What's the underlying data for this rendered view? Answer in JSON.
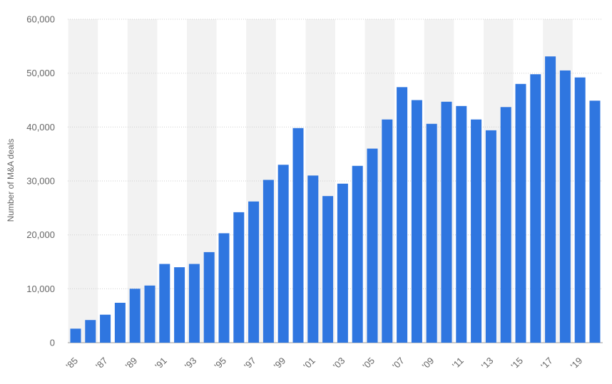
{
  "chart_data": {
    "type": "bar",
    "ylabel": "Number of M&A deals",
    "ylim": [
      0,
      60000
    ],
    "yticks": [
      0,
      10000,
      20000,
      30000,
      40000,
      50000,
      60000
    ],
    "ytick_labels": [
      "0",
      "10,000",
      "20,000",
      "30,000",
      "40,000",
      "50,000",
      "60,000"
    ],
    "grid": true,
    "colors": {
      "bar": "#2f76e0",
      "band": "#f2f2f2",
      "grid": "#cfcfcf"
    },
    "categories": [
      "'85",
      "'86",
      "'87",
      "'88",
      "'89",
      "'90",
      "'91",
      "'92",
      "'93",
      "'94",
      "'95",
      "'96",
      "'97",
      "'98",
      "'99",
      "'00",
      "'01",
      "'02",
      "'03",
      "'04",
      "'05",
      "'06",
      "'07",
      "'08",
      "'09",
      "'10",
      "'11",
      "'12",
      "'13",
      "'14",
      "'15",
      "'16",
      "'17",
      "'18",
      "'19",
      "'20"
    ],
    "values": [
      2600,
      4200,
      5200,
      7400,
      10000,
      10600,
      14600,
      14000,
      14600,
      16800,
      20300,
      24200,
      26200,
      30200,
      33000,
      39800,
      31000,
      27200,
      29500,
      32800,
      36000,
      41400,
      47400,
      45000,
      40600,
      44700,
      43900,
      41400,
      39400,
      43700,
      48000,
      49800,
      53100,
      50500,
      49200,
      44900
    ],
    "x_tick_labels": [
      "'85",
      "'87",
      "'89",
      "'91",
      "'93",
      "'95",
      "'97",
      "'99",
      "'01",
      "'03",
      "'05",
      "'07",
      "'09",
      "'11",
      "'13",
      "'15",
      "'17",
      "'19"
    ]
  }
}
